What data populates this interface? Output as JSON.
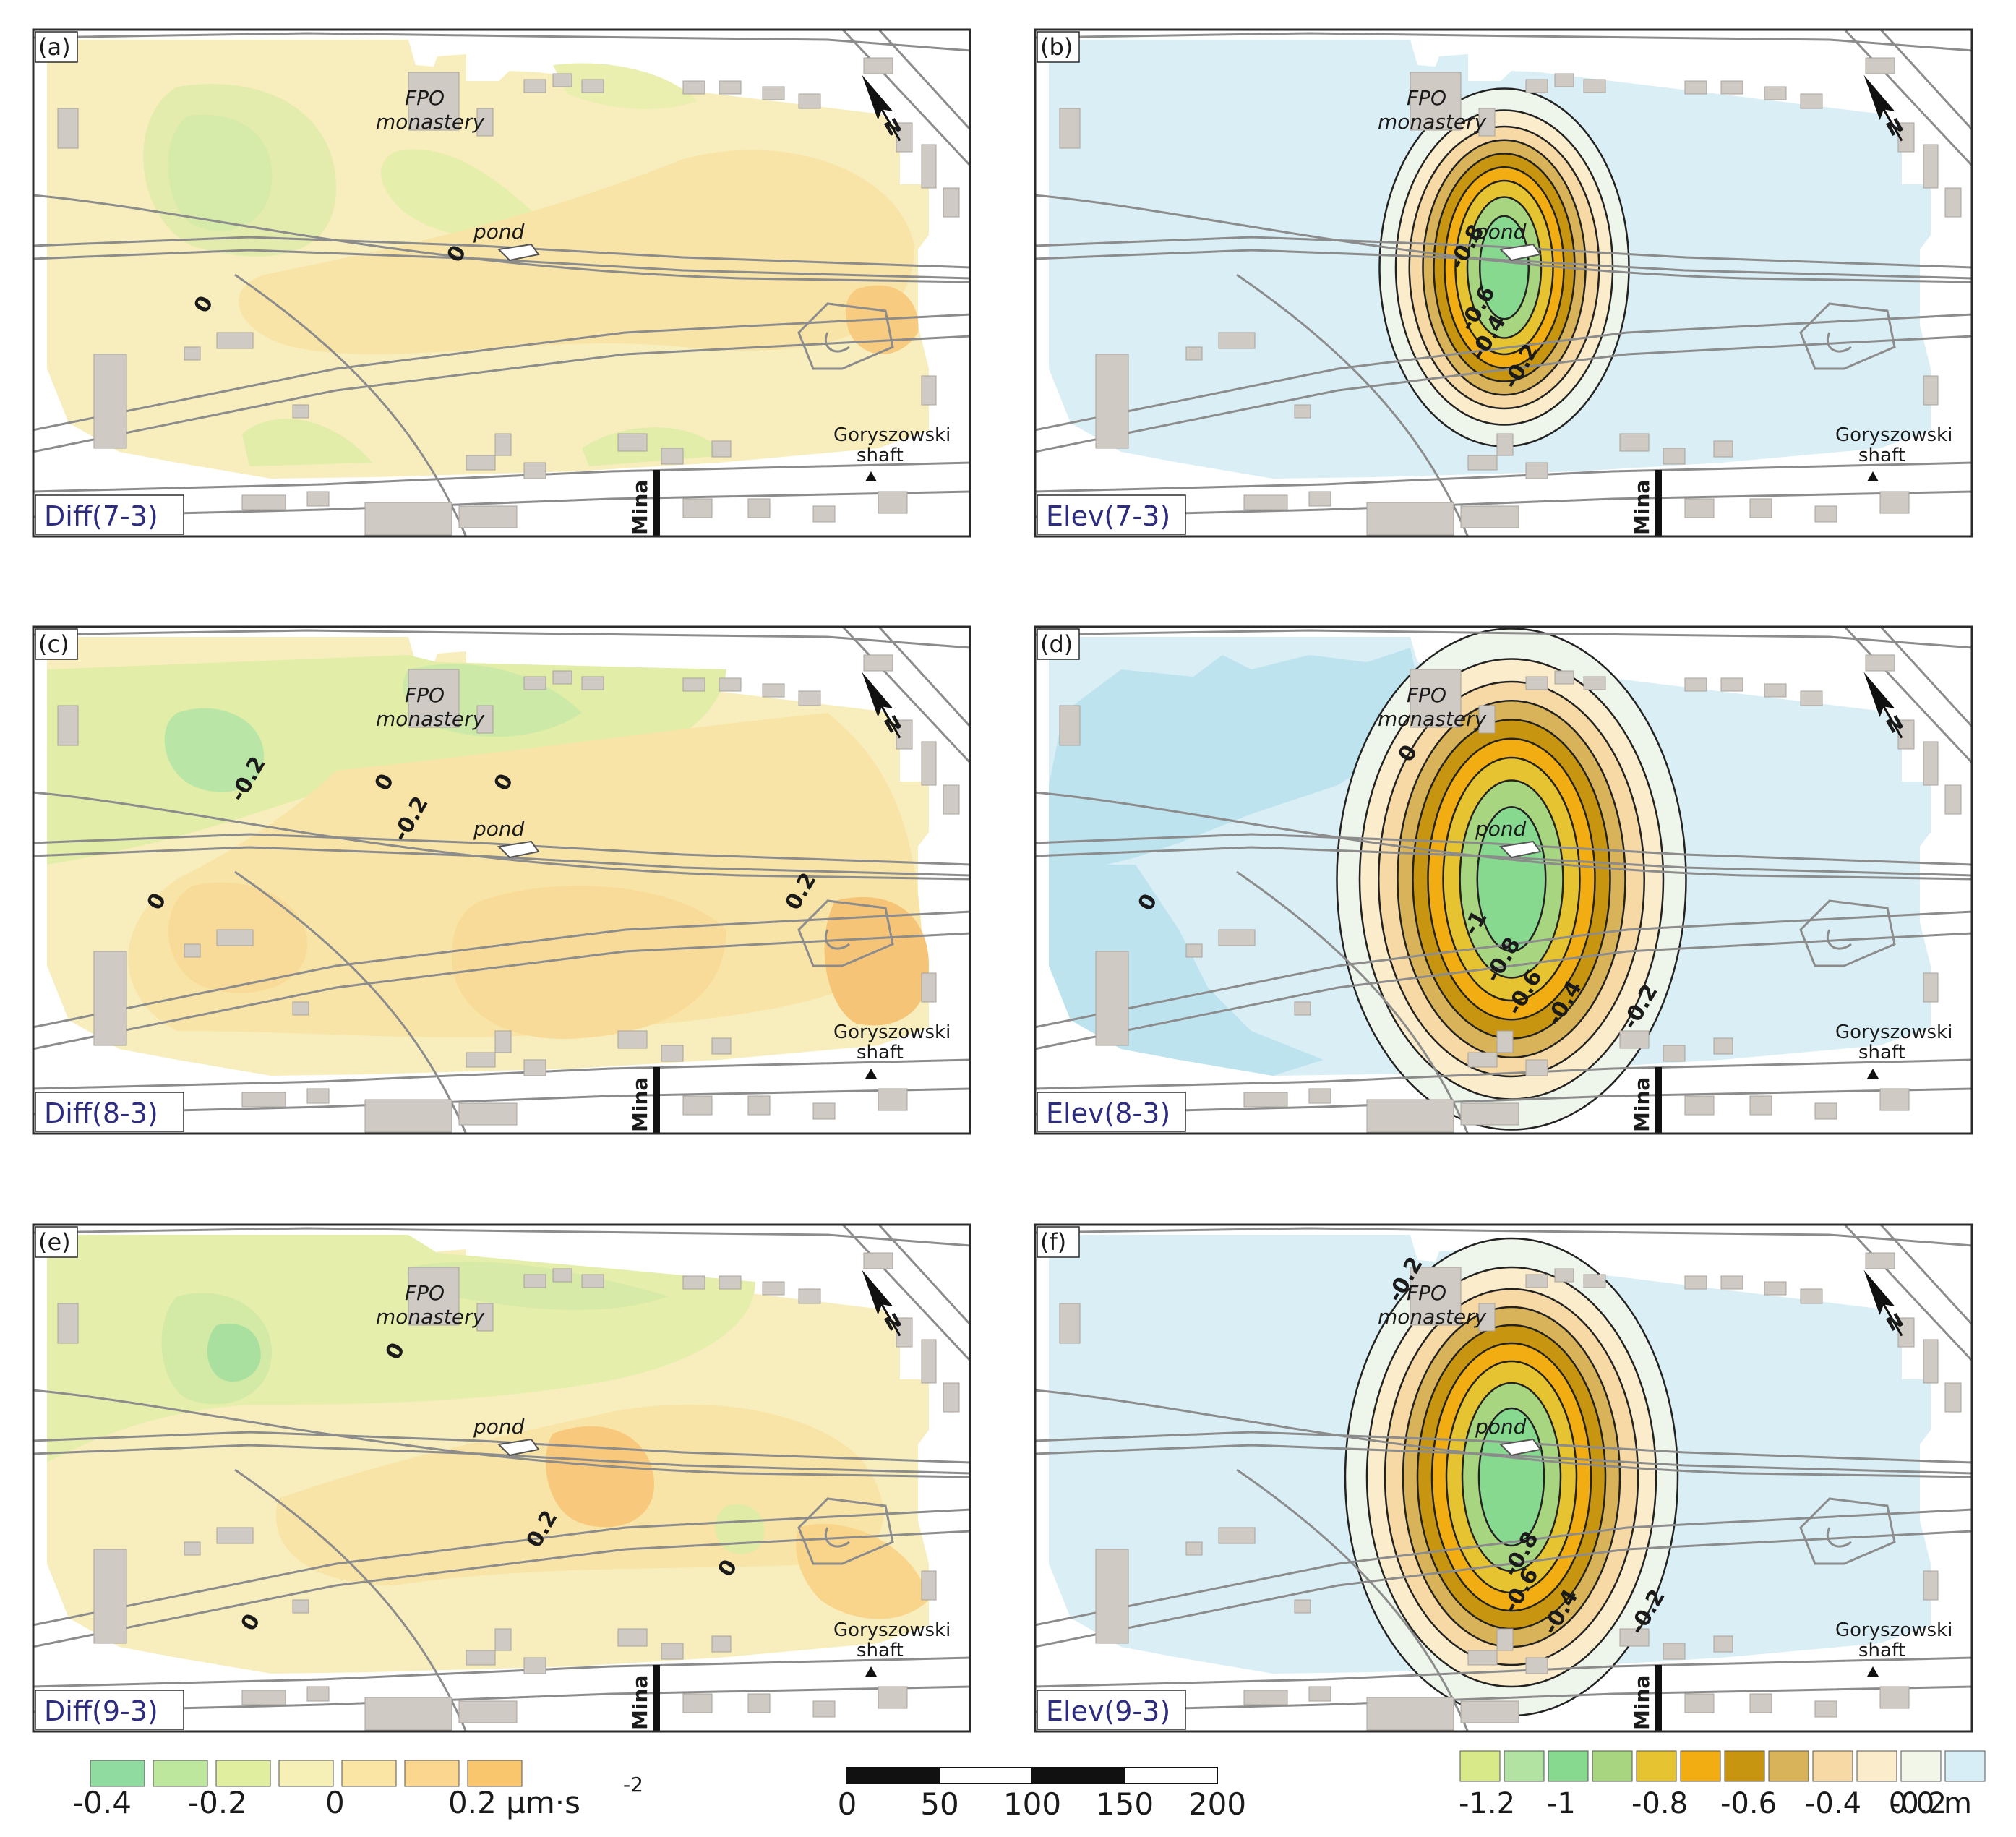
{
  "panels": [
    {
      "id": "a",
      "letter": "(a)",
      "label": "Diff(7-3)",
      "kind": "diff",
      "contour_labels": [
        "0",
        "0"
      ],
      "map_labels": {
        "monastery_line1": "FPO",
        "monastery_line2": "monastery",
        "pond": "pond",
        "shaft_line1": "Goryszowski",
        "shaft_line2": "shaft",
        "mine": "Mina",
        "north": "N"
      }
    },
    {
      "id": "b",
      "letter": "(b)",
      "label": "Elev(7-3)",
      "kind": "elev",
      "contour_labels": [
        "-0.8",
        "-0.6",
        "-0.4",
        "-0.2"
      ],
      "map_labels": {
        "monastery_line1": "FPO",
        "monastery_line2": "monastery",
        "pond": "pond",
        "shaft_line1": "Goryszowski",
        "shaft_line2": "shaft",
        "mine": "Mina",
        "north": "N"
      }
    },
    {
      "id": "c",
      "letter": "(c)",
      "label": "Diff(8-3)",
      "kind": "diff",
      "contour_labels": [
        "-0.2",
        "0",
        "-0.2",
        "0",
        "0",
        "0.2"
      ],
      "map_labels": {
        "monastery_line1": "FPO",
        "monastery_line2": "monastery",
        "pond": "pond",
        "shaft_line1": "Goryszowski",
        "shaft_line2": "shaft",
        "mine": "Mina",
        "north": "N"
      }
    },
    {
      "id": "d",
      "letter": "(d)",
      "label": "Elev(8-3)",
      "kind": "elev",
      "contour_labels": [
        "0",
        "0",
        "-1",
        "-0.8",
        "-0.6",
        "-0.4",
        "-0.2"
      ],
      "map_labels": {
        "monastery_line1": "FPO",
        "monastery_line2": "monastery",
        "pond": "pond",
        "shaft_line1": "Goryszowski",
        "shaft_line2": "shaft",
        "mine": "Mina",
        "north": "N"
      }
    },
    {
      "id": "e",
      "letter": "(e)",
      "label": "Diff(9-3)",
      "kind": "diff",
      "contour_labels": [
        "0",
        "0.2",
        "0",
        "0"
      ],
      "map_labels": {
        "monastery_line1": "FPO",
        "monastery_line2": "monastery",
        "pond": "pond",
        "shaft_line1": "Goryszowski",
        "shaft_line2": "shaft",
        "mine": "Mina",
        "north": "N"
      }
    },
    {
      "id": "f",
      "letter": "(f)",
      "label": "Elev(9-3)",
      "kind": "elev",
      "contour_labels": [
        "-0.2",
        "-0.8",
        "-0.6",
        "-0.4",
        "-0.2"
      ],
      "map_labels": {
        "monastery_line1": "FPO",
        "monastery_line2": "monastery",
        "pond": "pond",
        "shaft_line1": "Goryszowski",
        "shaft_line2": "shaft",
        "mine": "Mina",
        "north": "N"
      }
    }
  ],
  "legend_gravity": {
    "colors": [
      "#8fdba0",
      "#bde79d",
      "#e0ee9f",
      "#f6f0b6",
      "#fbe5a5",
      "#fbd68f",
      "#f9c56d"
    ],
    "tick_labels": [
      "-0.4",
      "-0.2",
      "0",
      "0.2 µm·s"
    ],
    "unit_superscript": "-2"
  },
  "scale_bar": {
    "tick_labels": [
      "0",
      "50",
      "100",
      "150",
      "200"
    ]
  },
  "legend_elevation": {
    "colors": [
      "#d8e98a",
      "#b2e3a2",
      "#86d98f",
      "#a8d57f",
      "#e6c330",
      "#f1ad12",
      "#c79510",
      "#d8b35a",
      "#f6d9a4",
      "#fbeccc",
      "#f2f6e9",
      "#d8eef6"
    ],
    "tick_labels": [
      "-1.2",
      "-1",
      "-0.8",
      "-0.6",
      "-0.4",
      "-0.2",
      "0.0 m"
    ]
  },
  "colors": {
    "frame": "#2b2b2b",
    "label_text": "#2e2c7e",
    "building": "#cfcac4",
    "road": "#8c8c8c"
  }
}
